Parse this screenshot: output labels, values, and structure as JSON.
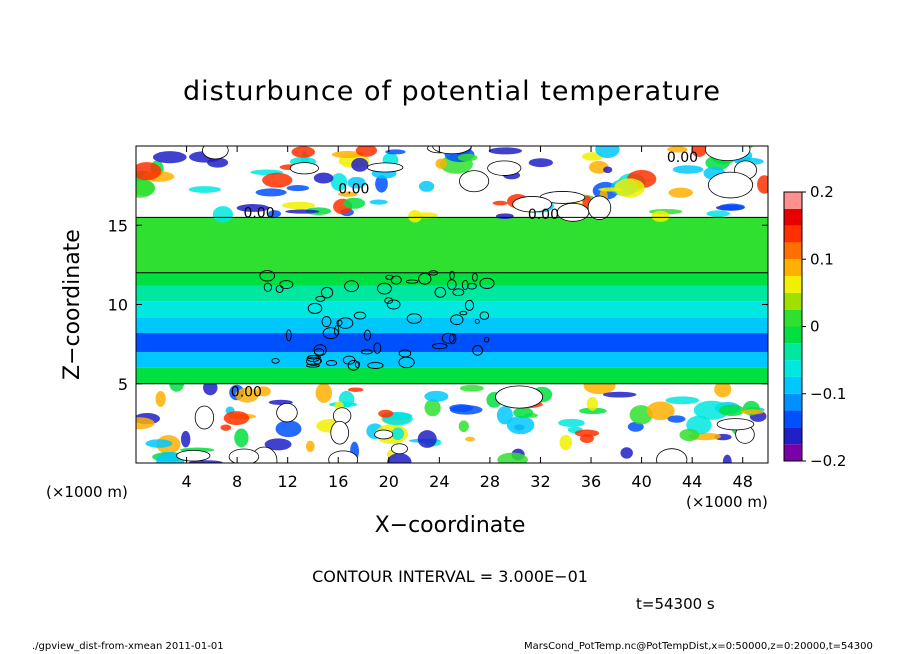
{
  "chart_data": {
    "type": "heatmap",
    "title": "disturbunce of potential temperature",
    "xlabel": "X−coordinate",
    "ylabel": "Z−coordinate",
    "x_unit_left": "(×1000 m)",
    "x_unit_right": "(×1000 m)",
    "xlim": [
      0,
      50
    ],
    "ylim": [
      0,
      20
    ],
    "x_ticks": [
      4,
      8,
      12,
      16,
      20,
      24,
      28,
      32,
      36,
      40,
      44,
      48
    ],
    "y_ticks": [
      5,
      10,
      15
    ],
    "colorbar": {
      "min": -0.2,
      "max": 0.2,
      "ticks": [
        0.2,
        0.1,
        0,
        -0.1,
        -0.2
      ],
      "tick_labels": [
        "0.2",
        "0.1",
        "0",
        "−0.1",
        "−0.2"
      ],
      "colors": [
        "#7a00a8",
        "#2020c8",
        "#0050ff",
        "#0090ff",
        "#00c8ff",
        "#00e8e0",
        "#00e8a0",
        "#00e040",
        "#30e030",
        "#a0e000",
        "#f0f000",
        "#ffb000",
        "#ff7000",
        "#ff3000",
        "#e80000",
        "#ff9090"
      ]
    },
    "bands": [
      {
        "z0": 0,
        "z1": 5,
        "value": 0.0,
        "pattern": "mixed"
      },
      {
        "z0": 5,
        "z1": 6,
        "value": -0.02
      },
      {
        "z0": 6,
        "z1": 7,
        "value": -0.08
      },
      {
        "z0": 7,
        "z1": 8.2,
        "value": -0.14
      },
      {
        "z0": 8.2,
        "z1": 9.2,
        "value": -0.1
      },
      {
        "z0": 9.2,
        "z1": 10.2,
        "value": -0.06
      },
      {
        "z0": 10.2,
        "z1": 11.2,
        "value": -0.03
      },
      {
        "z0": 11.2,
        "z1": 12,
        "value": -0.01
      },
      {
        "z0": 12,
        "z1": 15.5,
        "value": 0.0
      },
      {
        "z0": 15.5,
        "z1": 20,
        "value": 0.0,
        "pattern": "mixed"
      }
    ],
    "contour_labels": [
      {
        "x": 7.5,
        "z": 4.2,
        "text": "0.00"
      },
      {
        "x": 8.5,
        "z": 15.5,
        "text": "0.00"
      },
      {
        "x": 31,
        "z": 15.4,
        "text": "0.00"
      },
      {
        "x": 16,
        "z": 17.0,
        "text": "0.00"
      },
      {
        "x": 42,
        "z": 19.0,
        "text": "0.00"
      }
    ]
  },
  "contour_interval": "CONTOUR INTERVAL = 3.000E−01",
  "time_label": "t=54300 s",
  "footer_left": "./gpview_dist-from-xmean   2011-01-01",
  "footer_right": "MarsCond_PotTemp.nc@PotTempDist,x=0:50000,z=0:20000,t=54300"
}
